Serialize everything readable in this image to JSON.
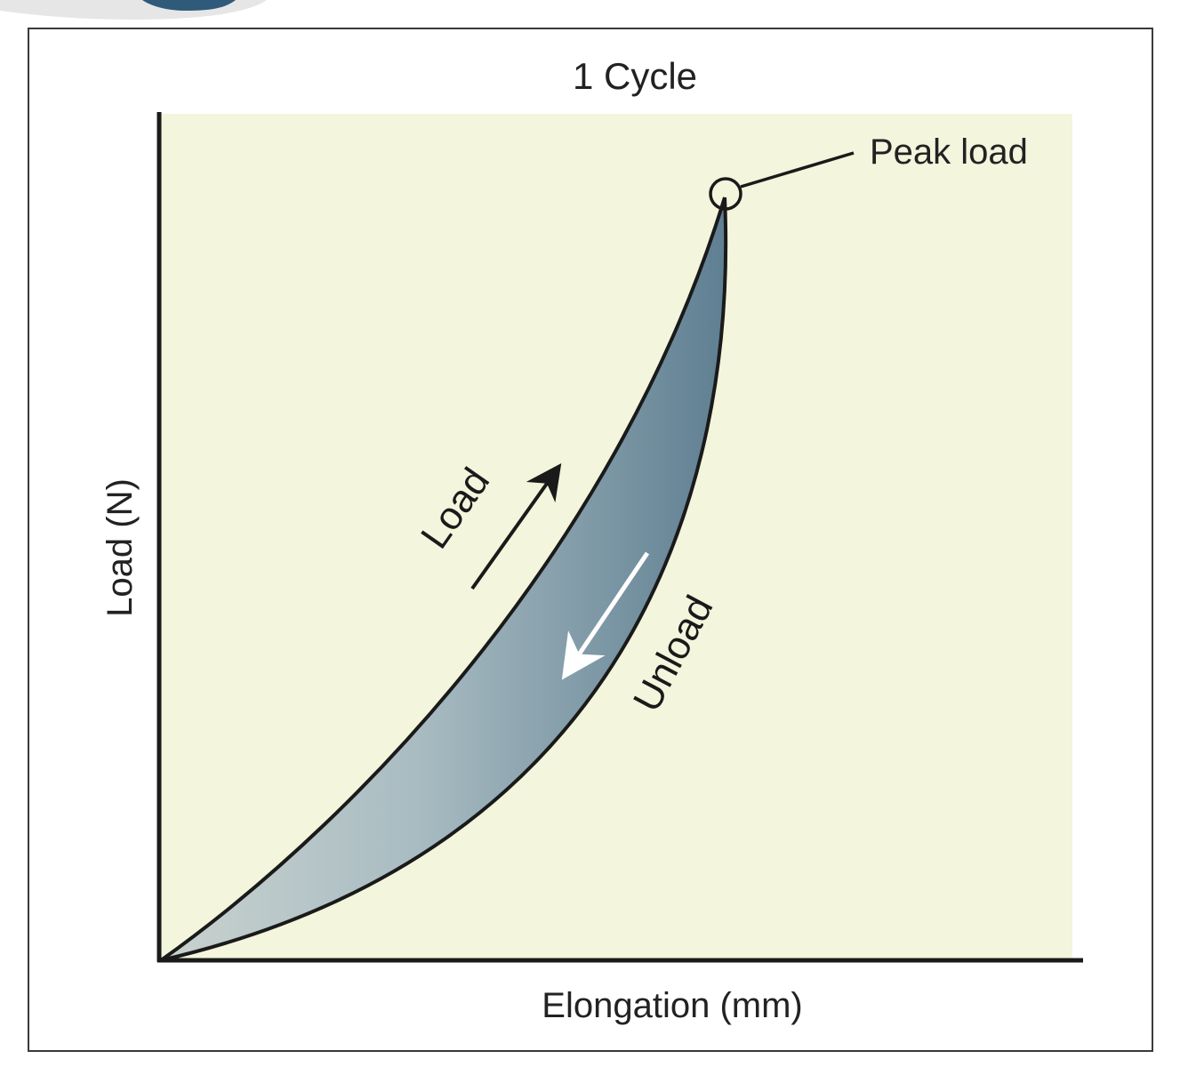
{
  "chart_data": {
    "type": "area",
    "title": "1 Cycle",
    "xlabel": "Elongation (mm)",
    "ylabel": "Load (N)",
    "series": [
      {
        "label": "Load"
      },
      {
        "label": "Unload"
      }
    ],
    "annotations": {
      "peak": "Peak load"
    },
    "colors": {
      "plot_background": "#f3f5dc",
      "loop_fill_light": "#c9d2cf",
      "loop_fill_dark": "#5f7f92",
      "axis": "#1a1a1a",
      "curve": "#1a1a1a",
      "load_arrow": "#1a1a1a",
      "unload_arrow": "#ffffff",
      "corner_shape": "#2f5a7a"
    }
  }
}
